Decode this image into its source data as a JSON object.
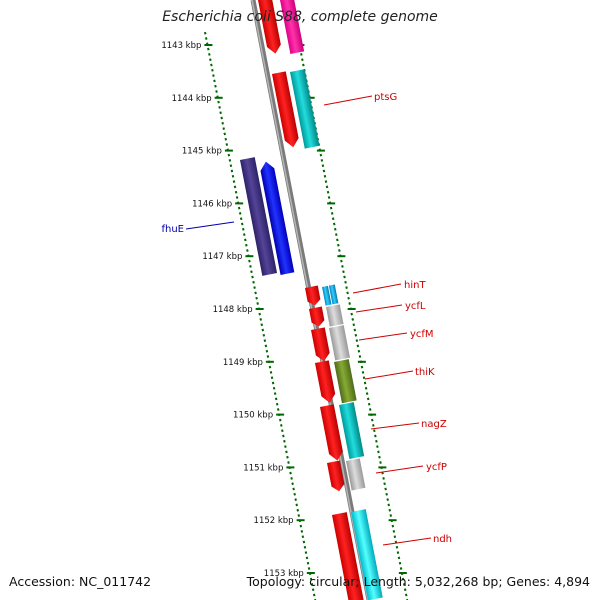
{
  "title": "Escherichia coli S88, complete genome",
  "footer": {
    "accession": "Accession: NC_011742",
    "summary": "Topology: circular; Length: 5,032,268 bp; Genes: 4,894"
  },
  "scale_labels": [
    "1143 kbp",
    "1144 kbp",
    "1145 kbp",
    "1146 kbp",
    "1147 kbp",
    "1148 kbp",
    "1149 kbp",
    "1150 kbp",
    "1151 kbp",
    "1152 kbp",
    "1153 kbp"
  ],
  "genes": [
    {
      "name": "ptsG",
      "color": "#cc0000"
    },
    {
      "name": "fhuE",
      "color": "#0000aa"
    },
    {
      "name": "hinT",
      "color": "#cc0000"
    },
    {
      "name": "ycfL",
      "color": "#cc0000"
    },
    {
      "name": "ycfM",
      "color": "#cc0000"
    },
    {
      "name": "thiK",
      "color": "#cc0000"
    },
    {
      "name": "nagZ",
      "color": "#cc0000"
    },
    {
      "name": "ycfP",
      "color": "#cc0000"
    },
    {
      "name": "ndh",
      "color": "#cc0000"
    }
  ],
  "colors": {
    "forward_cds": "#ff0000",
    "reverse_cds": "#0000ff",
    "cog_magenta": "#ff1493",
    "cog_cyan": "#00cccc",
    "cog_blue": "#443388",
    "cog_grey": "#bbbbbb",
    "cog_olive": "#6b8e23",
    "cog_light_blue": "#00aadd",
    "backbone": "#888888",
    "tick_green": "#006600"
  }
}
